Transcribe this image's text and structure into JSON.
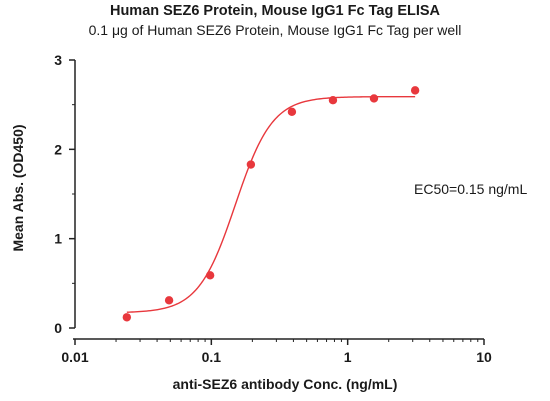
{
  "chart_data": {
    "type": "scatter",
    "title": "Human SEZ6 Protein, Mouse IgG1 Fc Tag ELISA",
    "subtitle": "0.1 μg of Human SEZ6 Protein, Mouse IgG1 Fc Tag per well",
    "xlabel": "anti-SEZ6 antibody Conc. (ng/mL)",
    "ylabel": "Mean Abs. (OD450)",
    "x_scale": "log",
    "xlim": [
      0.01,
      10
    ],
    "ylim": [
      0,
      3
    ],
    "x_ticks": [
      0.01,
      0.1,
      1,
      10
    ],
    "x_tick_labels": [
      "0.01",
      "0.1",
      "1",
      "10"
    ],
    "y_ticks": [
      0,
      1,
      2,
      3
    ],
    "y_tick_labels": [
      "0",
      "1",
      "2",
      "3"
    ],
    "grid": false,
    "color": "#e8383d",
    "series": [
      {
        "x": [
          0.024,
          0.049,
          0.098,
          0.195,
          0.39,
          0.78,
          1.56,
          3.125
        ],
        "y": [
          0.12,
          0.31,
          0.59,
          1.83,
          2.42,
          2.55,
          2.57,
          2.66
        ]
      }
    ],
    "fit_curve": {
      "model": "4PL",
      "bottom": 0.17,
      "top": 2.59,
      "ec50": 0.15,
      "hill": 3.2
    },
    "annotation": "EC50=0.15 ng/mL"
  }
}
